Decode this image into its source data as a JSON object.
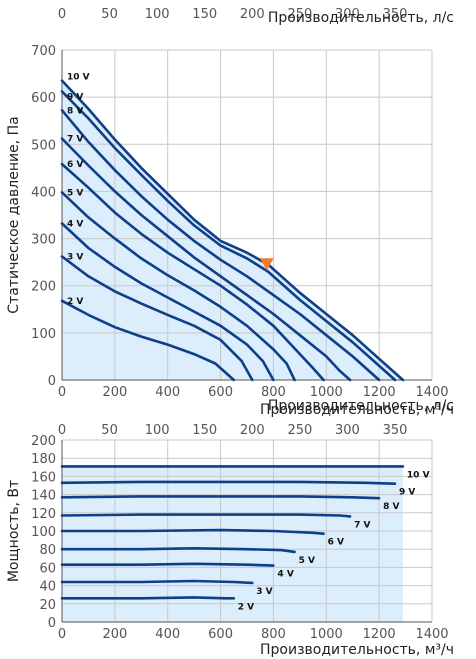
{
  "chart_data": [
    {
      "type": "line",
      "x_unit": "м³/ч",
      "xlabel": "Производительность, м³/ч",
      "x2label": "Производительность, л/с",
      "ylabel": "Статическое давление, Па",
      "xlim": [
        0,
        1400
      ],
      "x2lim": [
        0,
        388.9
      ],
      "ylim": [
        0,
        700
      ],
      "xticks": [
        0,
        200,
        400,
        600,
        800,
        1000,
        1200,
        1400
      ],
      "x2ticks": [
        0,
        50,
        100,
        150,
        200,
        250,
        300,
        350
      ],
      "yticks": [
        0,
        100,
        200,
        300,
        400,
        500,
        600,
        700
      ],
      "grid": true,
      "fill_color": "#dcedfb",
      "line_color": "#0d3f8a",
      "marker": {
        "x": 775,
        "y": 235,
        "color": "#f47a2c",
        "shape": "triangle-down"
      },
      "series": [
        {
          "name": "10 V",
          "x": [
            0,
            100,
            200,
            300,
            400,
            500,
            600,
            700,
            780,
            900,
            1000,
            1100,
            1200,
            1250,
            1290
          ],
          "y": [
            635,
            575,
            510,
            450,
            395,
            340,
            295,
            270,
            245,
            185,
            140,
            95,
            45,
            20,
            0
          ]
        },
        {
          "name": "9 V",
          "x": [
            0,
            100,
            200,
            300,
            400,
            500,
            600,
            700,
            780,
            900,
            1000,
            1100,
            1180,
            1230,
            1260
          ],
          "y": [
            612,
            555,
            492,
            435,
            380,
            328,
            285,
            258,
            230,
            170,
            125,
            80,
            40,
            15,
            0
          ]
        },
        {
          "name": "8 V",
          "x": [
            0,
            100,
            200,
            300,
            400,
            500,
            600,
            700,
            800,
            900,
            1000,
            1100,
            1160,
            1200
          ],
          "y": [
            572,
            505,
            445,
            390,
            340,
            295,
            255,
            220,
            180,
            140,
            95,
            50,
            20,
            0
          ]
        },
        {
          "name": "7 V",
          "x": [
            0,
            100,
            200,
            300,
            400,
            500,
            600,
            700,
            800,
            900,
            1000,
            1050,
            1090
          ],
          "y": [
            512,
            455,
            400,
            350,
            305,
            260,
            220,
            180,
            140,
            95,
            50,
            20,
            0
          ]
        },
        {
          "name": "6 V",
          "x": [
            0,
            100,
            200,
            300,
            400,
            500,
            600,
            700,
            800,
            850,
            900,
            950,
            990
          ],
          "y": [
            458,
            408,
            355,
            310,
            270,
            235,
            200,
            160,
            115,
            85,
            55,
            25,
            0
          ]
        },
        {
          "name": "5 V",
          "x": [
            0,
            100,
            200,
            300,
            400,
            500,
            600,
            700,
            800,
            850,
            880
          ],
          "y": [
            398,
            345,
            300,
            258,
            222,
            190,
            155,
            115,
            65,
            35,
            0
          ]
        },
        {
          "name": "4 V",
          "x": [
            0,
            100,
            200,
            300,
            400,
            500,
            600,
            700,
            760,
            800
          ],
          "y": [
            332,
            280,
            240,
            205,
            175,
            145,
            115,
            75,
            40,
            0
          ]
        },
        {
          "name": "3 V",
          "x": [
            0,
            100,
            200,
            300,
            400,
            500,
            600,
            680,
            720
          ],
          "y": [
            262,
            220,
            188,
            162,
            138,
            115,
            85,
            40,
            0
          ]
        },
        {
          "name": "2 V",
          "x": [
            0,
            100,
            200,
            300,
            400,
            500,
            580,
            620,
            650
          ],
          "y": [
            168,
            138,
            112,
            92,
            75,
            55,
            35,
            15,
            0
          ]
        }
      ]
    },
    {
      "type": "line",
      "x_unit": "м³/ч",
      "xlabel": "Производительность, м³/ч",
      "x2label": "Производительность, л/с",
      "ylabel": "Мощность, Вт",
      "xlim": [
        0,
        1400
      ],
      "x2lim": [
        0,
        388.9
      ],
      "ylim": [
        0,
        200
      ],
      "xticks": [
        0,
        200,
        400,
        600,
        800,
        1000,
        1200,
        1400
      ],
      "x2ticks": [
        0,
        50,
        100,
        150,
        200,
        250,
        300,
        350
      ],
      "yticks": [
        0,
        20,
        40,
        60,
        80,
        100,
        120,
        140,
        160,
        180,
        200
      ],
      "grid": true,
      "fill_color": "#dcedfb",
      "line_color": "#0d3f8a",
      "series": [
        {
          "name": "10 V",
          "x": [
            0,
            300,
            600,
            900,
            1200,
            1290
          ],
          "y": [
            171,
            171,
            171,
            171,
            171,
            171
          ]
        },
        {
          "name": "9 V",
          "x": [
            0,
            300,
            600,
            900,
            1150,
            1260
          ],
          "y": [
            153,
            154,
            154,
            154,
            153,
            152
          ]
        },
        {
          "name": "8 V",
          "x": [
            0,
            300,
            600,
            900,
            1100,
            1200
          ],
          "y": [
            137,
            138,
            138,
            138,
            137,
            136
          ]
        },
        {
          "name": "7 V",
          "x": [
            0,
            300,
            600,
            900,
            1050,
            1090
          ],
          "y": [
            117,
            118,
            118,
            118,
            117,
            116
          ]
        },
        {
          "name": "6 V",
          "x": [
            0,
            300,
            600,
            800,
            950,
            990
          ],
          "y": [
            100,
            100,
            101,
            100,
            98,
            97
          ]
        },
        {
          "name": "5 V",
          "x": [
            0,
            300,
            500,
            700,
            830,
            880
          ],
          "y": [
            80,
            80,
            81,
            80,
            79,
            77
          ]
        },
        {
          "name": "4 V",
          "x": [
            0,
            300,
            500,
            700,
            800
          ],
          "y": [
            63,
            63,
            64,
            63,
            62
          ]
        },
        {
          "name": "3 V",
          "x": [
            0,
            300,
            500,
            650,
            720
          ],
          "y": [
            44,
            44,
            45,
            44,
            43
          ]
        },
        {
          "name": "2 V",
          "x": [
            0,
            300,
            500,
            620,
            650
          ],
          "y": [
            26,
            26,
            27,
            26,
            26
          ]
        }
      ]
    }
  ]
}
